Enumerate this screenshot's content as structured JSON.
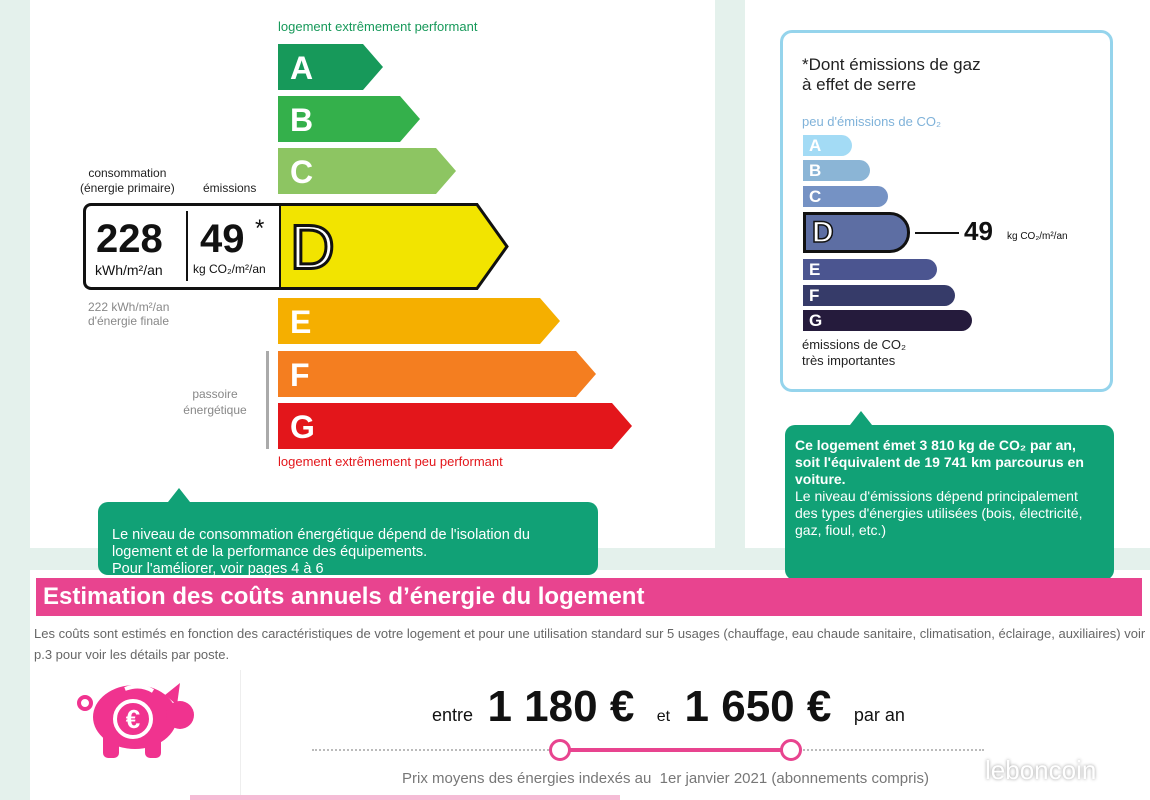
{
  "energy": {
    "top_label": "logement extrêmement performant",
    "bottom_label": "logement extrêmement peu performant",
    "classes": [
      {
        "letter": "A",
        "color": "#17995a"
      },
      {
        "letter": "B",
        "color": "#34b04b"
      },
      {
        "letter": "C",
        "color": "#8dc562"
      },
      {
        "letter": "D",
        "color": "#f2e400"
      },
      {
        "letter": "E",
        "color": "#f5af00"
      },
      {
        "letter": "F",
        "color": "#f47e20"
      },
      {
        "letter": "G",
        "color": "#e3161b"
      }
    ],
    "current_class": "D",
    "consumption_label": "consommation\n(énergie primaire)",
    "emissions_label": "émissions",
    "consumption_value": "228",
    "consumption_unit": "kWh/m²/an",
    "emissions_value": "49",
    "emissions_star": "*",
    "emissions_unit": "kg CO₂/m²/an",
    "final_energy": "222 kWh/m²/an\nd'énergie finale",
    "passoire": "passoire\nénergétique",
    "tooltip": "Le niveau de consommation énergétique dépend de l'isolation du logement et de la performance des équipements.\nPour l'améliorer, voir pages 4 à 6"
  },
  "ghg": {
    "title": "*Dont émissions de gaz\nà effet de serre",
    "top_label": "peu d'émissions de CO₂",
    "bottom_label": "émissions de CO₂\ntrès importantes",
    "classes": [
      {
        "letter": "A",
        "color": "#a3dbf5"
      },
      {
        "letter": "B",
        "color": "#8bb5d6"
      },
      {
        "letter": "C",
        "color": "#7592c4"
      },
      {
        "letter": "D",
        "color": "#5d6ea3"
      },
      {
        "letter": "E",
        "color": "#4b5590"
      },
      {
        "letter": "F",
        "color": "#363b69"
      },
      {
        "letter": "G",
        "color": "#251b3c"
      }
    ],
    "current_class": "D",
    "value": "49",
    "unit": "kg CO₂/m²/an",
    "tooltip_bold": "Ce logement émet 3 810 kg de CO₂ par an, soit l'équivalent de 19 741 km parcourus en voiture.",
    "tooltip": "Le niveau d'émissions dépend principalement des types d'énergies utilisées (bois, électricité, gaz, fioul, etc.)"
  },
  "costs": {
    "title": "Estimation des coûts annuels d’énergie du logement",
    "accent": "#e8448f",
    "description": "Les coûts sont estimés en fonction des caractéristiques de votre logement et pour une utilisation standard sur 5 usages (chauffage, eau chaude sanitaire, climatisation, éclairage, auxiliaires) voir p.3 pour voir les détails par poste.",
    "between": "entre",
    "min": "1 180 €",
    "and": "et",
    "max": "1 650 €",
    "per_year": "par an",
    "note": "Prix moyens des énergies indexés au  1er janvier 2021 (abonnements compris)",
    "icon": "piggy-bank-euro-icon"
  },
  "watermark": "leboncoin"
}
